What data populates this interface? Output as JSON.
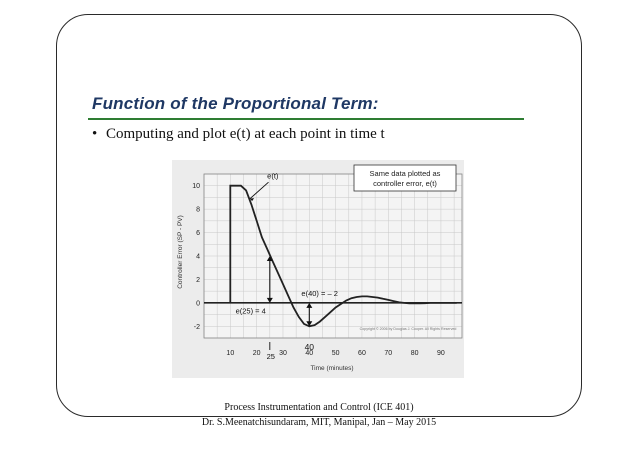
{
  "slide": {
    "title": "Function of the Proportional Term:",
    "bullet": "Computing and plot e(t) at each point in time t"
  },
  "chart_data": {
    "type": "line",
    "ylabel": "Controller Error (SP - PV)",
    "xlabel": "Time (minutes)",
    "x_ticks": [
      "10",
      "20",
      "30",
      "40",
      "50",
      "60",
      "70",
      "80",
      "90"
    ],
    "y_ticks": [
      "10",
      "8",
      "6",
      "4",
      "2",
      "0",
      "-2"
    ],
    "xlim": [
      0,
      98
    ],
    "ylim": [
      -3,
      11
    ],
    "series": [
      {
        "name": "e(t)",
        "x": [
          10,
          10,
          14,
          16,
          18,
          20,
          22,
          24,
          26,
          28,
          30,
          32,
          34,
          36,
          38,
          40,
          42,
          44,
          46,
          48,
          50,
          52,
          54,
          56,
          58,
          60,
          62,
          64,
          66,
          68,
          70,
          72,
          74,
          76,
          78,
          80,
          82,
          84,
          86,
          88,
          90,
          92,
          94,
          96
        ],
        "y": [
          0,
          10,
          10,
          9.6,
          8.4,
          7.0,
          5.6,
          4.6,
          3.6,
          2.6,
          1.6,
          0.6,
          -0.4,
          -1.2,
          -1.8,
          -2.0,
          -1.9,
          -1.6,
          -1.2,
          -0.8,
          -0.4,
          -0.1,
          0.2,
          0.4,
          0.5,
          0.55,
          0.55,
          0.5,
          0.45,
          0.35,
          0.25,
          0.15,
          0.05,
          0.0,
          -0.05,
          -0.05,
          -0.05,
          -0.03,
          0.0,
          0.0,
          0.0,
          0.0,
          0.0,
          0.0
        ]
      }
    ],
    "legend_box": {
      "line1": "Same data plotted as",
      "line2": "controller error, e(t)"
    },
    "annotations": {
      "et_label": "e(t)",
      "e25": "e(25) = 4",
      "e40": "e(40) = – 2",
      "mark25": "25",
      "mark40": "40",
      "copyright": "Copyright © 2006 by Douglas J. Cooper.  All Rights Reserved"
    }
  },
  "footer": {
    "line1": "Process Instrumentation and Control (ICE 401)",
    "line2": "Dr. S.Meenatchisundaram, MIT, Manipal, Jan – May 2015"
  }
}
